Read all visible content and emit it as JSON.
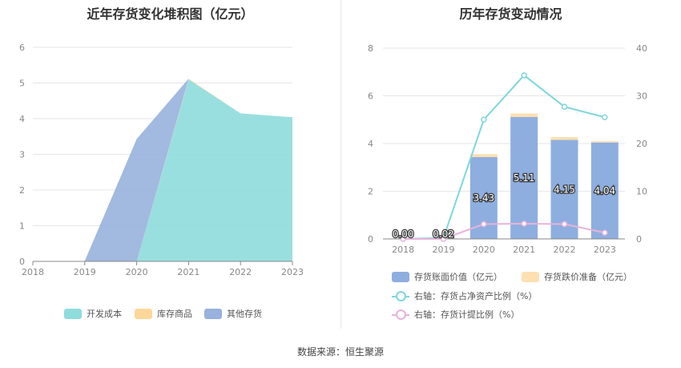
{
  "source_text": "数据来源：恒生聚源",
  "chart_data": [
    {
      "type": "area",
      "stacked": true,
      "title": "近年存货变化堆积图（亿元）",
      "categories": [
        "2018",
        "2019",
        "2020",
        "2021",
        "2022",
        "2023"
      ],
      "ylim": [
        0,
        6
      ],
      "yticks": [
        "0",
        "1",
        "2",
        "3",
        "4",
        "5",
        "6"
      ],
      "grid": true,
      "legend_position": "bottom",
      "series": [
        {
          "name": "开发成本",
          "color": "#8fdcdc",
          "values": [
            0,
            0,
            0,
            5.1,
            4.15,
            4.04
          ]
        },
        {
          "name": "库存商品",
          "color": "#fdd79a",
          "values": [
            0,
            0.01,
            0,
            0.02,
            0,
            0
          ]
        },
        {
          "name": "其他存货",
          "color": "#98b1dd",
          "values": [
            0,
            0,
            3.43,
            0,
            0,
            0
          ]
        }
      ]
    },
    {
      "type": "bar",
      "stacked": true,
      "title": "历年存货变动情况",
      "categories": [
        "2018",
        "2019",
        "2020",
        "2021",
        "2022",
        "2023"
      ],
      "ylim": [
        0,
        8
      ],
      "yticks": [
        "0",
        "2",
        "4",
        "6",
        "8"
      ],
      "y2lim": [
        0,
        40
      ],
      "y2ticks": [
        "0",
        "10",
        "20",
        "30",
        "40"
      ],
      "grid": true,
      "legend_position": "bottom",
      "series": [
        {
          "name": "存货账面价值（亿元）",
          "color": "#8eaee0",
          "values": [
            0.0,
            0.02,
            3.43,
            5.11,
            4.15,
            4.04
          ],
          "labels": [
            "0.00",
            "0.02",
            "3.43",
            "5.11",
            "4.15",
            "4.04"
          ]
        },
        {
          "name": "存货跌价准备（亿元）",
          "color": "#fde0b0",
          "values": [
            0,
            0,
            0.12,
            0.15,
            0.12,
            0.06
          ]
        }
      ],
      "line_series": [
        {
          "name": "右轴：存货占净资产比例（%）",
          "color": "#7fd6dc",
          "axis": "right",
          "values": [
            0,
            0.2,
            25,
            34.3,
            27.7,
            25.5
          ]
        },
        {
          "name": "右轴：存货计提比例（%）",
          "color": "#e7b3da",
          "axis": "right",
          "values": [
            0,
            0,
            3.1,
            3.2,
            3.1,
            1.3
          ]
        }
      ]
    }
  ]
}
